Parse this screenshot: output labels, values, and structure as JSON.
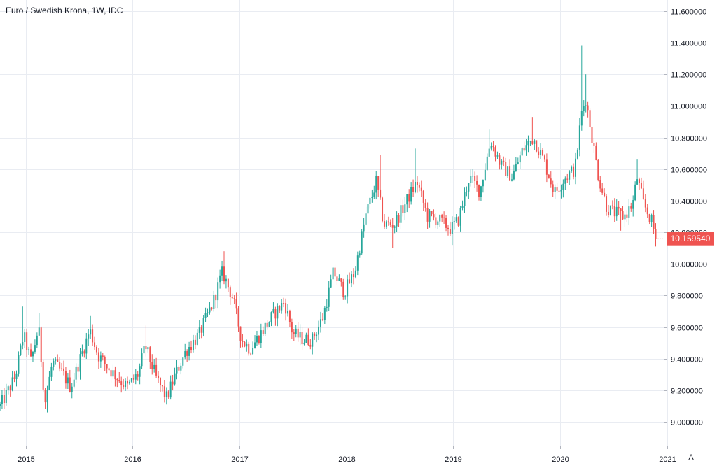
{
  "chart_data": {
    "type": "candlestick",
    "title": "Euro / Swedish Krona, 1W, IDC",
    "x_ticks": [
      "2015",
      "2016",
      "2017",
      "2018",
      "2019",
      "2020",
      "2021"
    ],
    "y_ticks": [
      "9.000000",
      "9.200000",
      "9.400000",
      "9.600000",
      "9.800000",
      "10.000000",
      "10.200000",
      "10.400000",
      "10.600000",
      "10.800000",
      "11.000000",
      "11.200000",
      "11.400000",
      "11.600000"
    ],
    "ylim": [
      8.85,
      11.67
    ],
    "xlim": [
      2014.76,
      2020.97
    ],
    "last_price": "10.159540",
    "last_value": 10.15954,
    "colors": {
      "up": "#26a69a",
      "down": "#ef5350",
      "grid": "#e9ecf2",
      "axis_text": "#131722",
      "price_tag": "#ef5350"
    },
    "anchors": [
      {
        "t": 2014.76,
        "v": 9.1
      },
      {
        "t": 2014.9,
        "v": 9.28
      },
      {
        "t": 2014.98,
        "v": 9.55
      },
      {
        "t": 2015.05,
        "v": 9.38
      },
      {
        "t": 2015.12,
        "v": 9.6
      },
      {
        "t": 2015.18,
        "v": 9.12
      },
      {
        "t": 2015.25,
        "v": 9.38
      },
      {
        "t": 2015.35,
        "v": 9.3
      },
      {
        "t": 2015.42,
        "v": 9.22
      },
      {
        "t": 2015.5,
        "v": 9.38
      },
      {
        "t": 2015.6,
        "v": 9.58
      },
      {
        "t": 2015.68,
        "v": 9.42
      },
      {
        "t": 2015.8,
        "v": 9.32
      },
      {
        "t": 2015.95,
        "v": 9.22
      },
      {
        "t": 2016.05,
        "v": 9.3
      },
      {
        "t": 2016.12,
        "v": 9.48
      },
      {
        "t": 2016.22,
        "v": 9.28
      },
      {
        "t": 2016.32,
        "v": 9.15
      },
      {
        "t": 2016.4,
        "v": 9.3
      },
      {
        "t": 2016.5,
        "v": 9.45
      },
      {
        "t": 2016.62,
        "v": 9.55
      },
      {
        "t": 2016.75,
        "v": 9.75
      },
      {
        "t": 2016.84,
        "v": 9.95
      },
      {
        "t": 2016.94,
        "v": 9.78
      },
      {
        "t": 2017.02,
        "v": 9.52
      },
      {
        "t": 2017.1,
        "v": 9.46
      },
      {
        "t": 2017.22,
        "v": 9.58
      },
      {
        "t": 2017.32,
        "v": 9.68
      },
      {
        "t": 2017.42,
        "v": 9.76
      },
      {
        "t": 2017.5,
        "v": 9.56
      },
      {
        "t": 2017.6,
        "v": 9.52
      },
      {
        "t": 2017.68,
        "v": 9.52
      },
      {
        "t": 2017.78,
        "v": 9.66
      },
      {
        "t": 2017.88,
        "v": 9.95
      },
      {
        "t": 2017.98,
        "v": 9.82
      },
      {
        "t": 2018.08,
        "v": 9.95
      },
      {
        "t": 2018.18,
        "v": 10.3
      },
      {
        "t": 2018.28,
        "v": 10.52
      },
      {
        "t": 2018.35,
        "v": 10.25
      },
      {
        "t": 2018.45,
        "v": 10.25
      },
      {
        "t": 2018.55,
        "v": 10.38
      },
      {
        "t": 2018.66,
        "v": 10.52
      },
      {
        "t": 2018.76,
        "v": 10.3
      },
      {
        "t": 2018.86,
        "v": 10.28
      },
      {
        "t": 2018.98,
        "v": 10.22
      },
      {
        "t": 2019.05,
        "v": 10.28
      },
      {
        "t": 2019.15,
        "v": 10.55
      },
      {
        "t": 2019.25,
        "v": 10.46
      },
      {
        "t": 2019.35,
        "v": 10.78
      },
      {
        "t": 2019.45,
        "v": 10.62
      },
      {
        "t": 2019.55,
        "v": 10.55
      },
      {
        "t": 2019.65,
        "v": 10.72
      },
      {
        "t": 2019.75,
        "v": 10.8
      },
      {
        "t": 2019.85,
        "v": 10.65
      },
      {
        "t": 2019.95,
        "v": 10.45
      },
      {
        "t": 2020.05,
        "v": 10.55
      },
      {
        "t": 2020.14,
        "v": 10.6
      },
      {
        "t": 2020.2,
        "v": 10.95
      },
      {
        "t": 2020.24,
        "v": 11.05
      },
      {
        "t": 2020.3,
        "v": 10.8
      },
      {
        "t": 2020.36,
        "v": 10.55
      },
      {
        "t": 2020.44,
        "v": 10.35
      },
      {
        "t": 2020.52,
        "v": 10.32
      },
      {
        "t": 2020.6,
        "v": 10.3
      },
      {
        "t": 2020.68,
        "v": 10.38
      },
      {
        "t": 2020.72,
        "v": 10.55
      },
      {
        "t": 2020.78,
        "v": 10.38
      },
      {
        "t": 2020.85,
        "v": 10.28
      },
      {
        "t": 2020.9,
        "v": 10.16
      }
    ],
    "spikes": [
      {
        "t": 2014.98,
        "v": 9.73
      },
      {
        "t": 2015.12,
        "v": 9.69
      },
      {
        "t": 2015.2,
        "v": 9.06
      },
      {
        "t": 2015.6,
        "v": 9.67
      },
      {
        "t": 2016.12,
        "v": 9.61
      },
      {
        "t": 2016.32,
        "v": 9.11
      },
      {
        "t": 2016.86,
        "v": 10.08
      },
      {
        "t": 2017.1,
        "v": 9.42
      },
      {
        "t": 2017.66,
        "v": 9.46
      },
      {
        "t": 2018.32,
        "v": 10.69
      },
      {
        "t": 2018.43,
        "v": 10.1
      },
      {
        "t": 2018.65,
        "v": 10.73
      },
      {
        "t": 2019.0,
        "v": 10.12
      },
      {
        "t": 2019.34,
        "v": 10.85
      },
      {
        "t": 2019.75,
        "v": 10.93
      },
      {
        "t": 2020.21,
        "v": 11.38
      },
      {
        "t": 2020.25,
        "v": 11.2
      },
      {
        "t": 2020.56,
        "v": 10.21
      },
      {
        "t": 2020.72,
        "v": 10.66
      },
      {
        "t": 2020.9,
        "v": 10.11
      }
    ]
  }
}
